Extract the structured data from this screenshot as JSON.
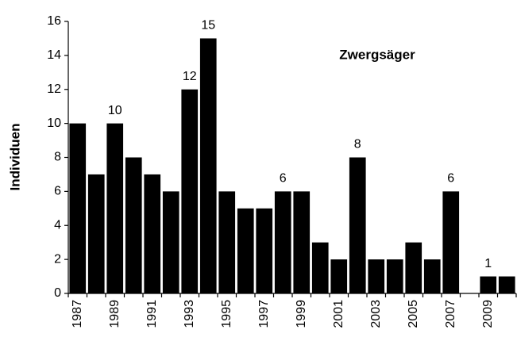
{
  "chart_data": {
    "type": "bar",
    "annotation": "Zwergsäger",
    "ylabel": "Individuen",
    "categories": [
      "1987",
      null,
      "1989",
      null,
      "1991",
      null,
      "1993",
      null,
      "1995",
      null,
      "1997",
      null,
      "1999",
      null,
      "2001",
      null,
      "2003",
      null,
      "2005",
      null,
      "2007",
      null,
      "2009",
      null
    ],
    "values": [
      10,
      7,
      10,
      8,
      7,
      6,
      12,
      15,
      6,
      5,
      5,
      6,
      6,
      3,
      2,
      8,
      2,
      2,
      3,
      2,
      6,
      0,
      1,
      1
    ],
    "value_labels": [
      null,
      null,
      "10",
      null,
      null,
      null,
      "12",
      "15",
      null,
      null,
      null,
      "6",
      null,
      null,
      null,
      "8",
      null,
      null,
      null,
      null,
      "6",
      null,
      "1",
      null
    ],
    "color": "#000000",
    "ylim": [
      0,
      16
    ],
    "yticks": [
      0,
      2,
      4,
      6,
      8,
      10,
      12,
      14,
      16
    ],
    "grid": false
  }
}
